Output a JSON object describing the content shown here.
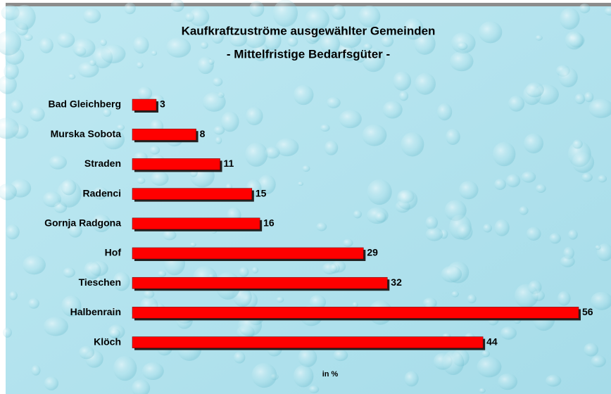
{
  "chart_data": {
    "type": "bar",
    "orientation": "horizontal",
    "title": "Kaufkraftzuströme ausgewählter Gemeinden",
    "subtitle": "- Mittelfristige Bedarfsgüter -",
    "x_label": "in %",
    "categories": [
      "Bad Gleichberg",
      "Murska Sobota",
      "Straden",
      "Radenci",
      "Gornja Radgona",
      "Hof",
      "Tieschen",
      "Halbenrain",
      "Klöch"
    ],
    "values": [
      3,
      8,
      11,
      15,
      16,
      29,
      32,
      56,
      44
    ],
    "color": "#ff0000",
    "xlim": [
      0,
      56
    ]
  }
}
